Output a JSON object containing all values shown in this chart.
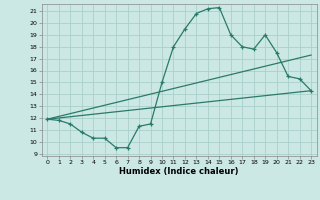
{
  "xlabel": "Humidex (Indice chaleur)",
  "bg_color": "#cce8e4",
  "line_color": "#2a7a6a",
  "grid_color": "#aacfcc",
  "xlim": [
    -0.5,
    23.5
  ],
  "ylim": [
    8.8,
    21.6
  ],
  "xticks": [
    0,
    1,
    2,
    3,
    4,
    5,
    6,
    7,
    8,
    9,
    10,
    11,
    12,
    13,
    14,
    15,
    16,
    17,
    18,
    19,
    20,
    21,
    22,
    23
  ],
  "yticks": [
    9,
    10,
    11,
    12,
    13,
    14,
    15,
    16,
    17,
    18,
    19,
    20,
    21
  ],
  "line1_x": [
    0,
    1,
    2,
    3,
    4,
    5,
    6,
    7,
    8,
    9,
    10,
    11,
    12,
    13,
    14,
    15,
    16,
    17,
    18,
    19,
    20,
    21,
    22,
    23
  ],
  "line1_y": [
    11.9,
    11.8,
    11.5,
    10.8,
    10.3,
    10.3,
    9.5,
    9.5,
    11.3,
    11.5,
    15,
    18,
    19.5,
    20.8,
    21.2,
    21.3,
    19,
    18,
    17.8,
    19,
    17.5,
    15.5,
    15.3,
    14.3
  ],
  "line2_x": [
    0,
    23
  ],
  "line2_y": [
    11.9,
    14.3
  ],
  "line3_x": [
    0,
    23
  ],
  "line3_y": [
    11.9,
    17.3
  ]
}
